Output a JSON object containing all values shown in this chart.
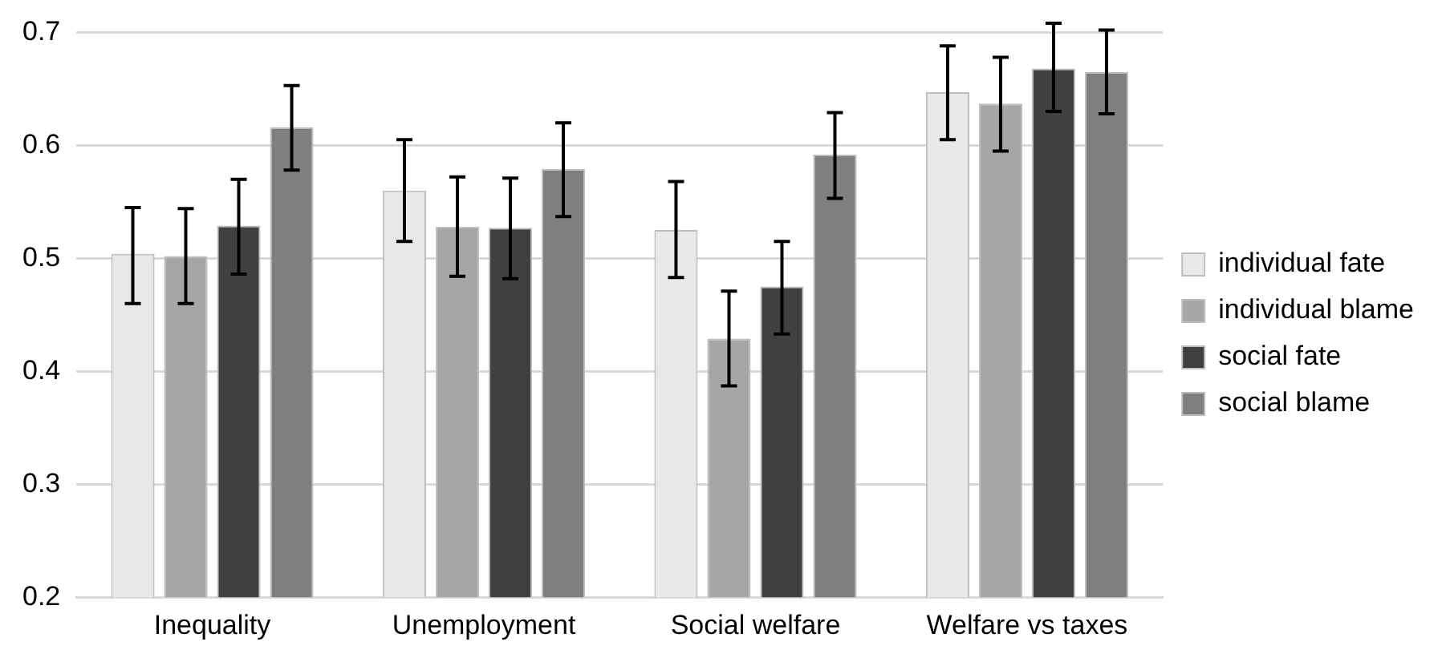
{
  "chart_data": {
    "type": "bar",
    "categories": [
      "Inequality",
      "Unemployment",
      "Social welfare",
      "Welfare vs taxes"
    ],
    "series": [
      {
        "name": "individual fate",
        "color": "#e8e8e8",
        "values": [
          0.504,
          0.56,
          0.525,
          0.647
        ],
        "errors": [
          [
            0.46,
            0.545
          ],
          [
            0.515,
            0.605
          ],
          [
            0.483,
            0.568
          ],
          [
            0.605,
            0.688
          ]
        ]
      },
      {
        "name": "individual blame",
        "color": "#a6a6a6",
        "values": [
          0.502,
          0.528,
          0.429,
          0.637
        ],
        "errors": [
          [
            0.46,
            0.544
          ],
          [
            0.484,
            0.572
          ],
          [
            0.387,
            0.471
          ],
          [
            0.595,
            0.678
          ]
        ]
      },
      {
        "name": "social fate",
        "color": "#404040",
        "values": [
          0.529,
          0.527,
          0.475,
          0.668
        ],
        "errors": [
          [
            0.486,
            0.57
          ],
          [
            0.482,
            0.571
          ],
          [
            0.433,
            0.515
          ],
          [
            0.63,
            0.708
          ]
        ]
      },
      {
        "name": "social blame",
        "color": "#7f7f7f",
        "values": [
          0.616,
          0.579,
          0.592,
          0.665
        ],
        "errors": [
          [
            0.578,
            0.653
          ],
          [
            0.537,
            0.62
          ],
          [
            0.553,
            0.629
          ],
          [
            0.628,
            0.702
          ]
        ]
      }
    ],
    "ylim": [
      0.2,
      0.7
    ],
    "yticks": [
      0.2,
      0.3,
      0.4,
      0.5,
      0.6,
      0.7
    ],
    "grid": "y",
    "legend": "right"
  }
}
